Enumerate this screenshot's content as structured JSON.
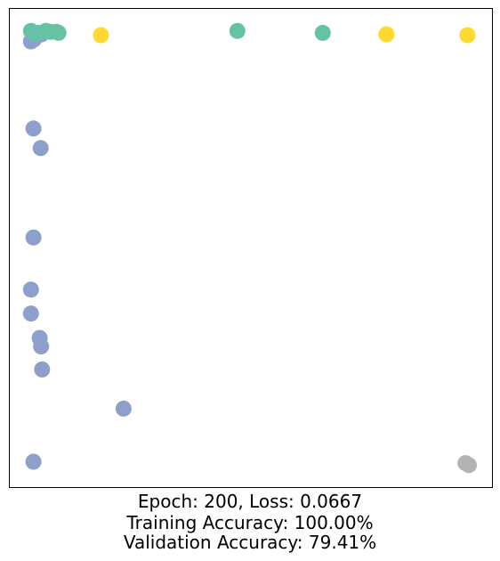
{
  "chart_data": {
    "type": "scatter",
    "title": "",
    "xlabel": "",
    "ylabel": "",
    "xlim": [
      0,
      1
    ],
    "ylim": [
      0,
      1
    ],
    "grid": false,
    "axis_ticks": false,
    "caption": [
      "Epoch: 200, Loss: 0.0667",
      "Training Accuracy: 100.00%",
      "Validation Accuracy: 79.41%"
    ],
    "series": [
      {
        "color": "#8da0cb",
        "points": [
          [
            0.044,
            0.932
          ],
          [
            0.05,
            0.936
          ],
          [
            0.066,
            0.947
          ],
          [
            0.049,
            0.75
          ],
          [
            0.064,
            0.709
          ],
          [
            0.049,
            0.522
          ],
          [
            0.044,
            0.413
          ],
          [
            0.044,
            0.363
          ],
          [
            0.062,
            0.312
          ],
          [
            0.065,
            0.294
          ],
          [
            0.067,
            0.246
          ],
          [
            0.236,
            0.164
          ],
          [
            0.049,
            0.053
          ]
        ]
      },
      {
        "color": "#66c2a5",
        "points": [
          [
            0.044,
            0.954
          ],
          [
            0.051,
            0.948
          ],
          [
            0.06,
            0.95
          ],
          [
            0.075,
            0.954
          ],
          [
            0.085,
            0.952
          ],
          [
            0.097,
            0.952
          ],
          [
            0.101,
            0.95
          ],
          [
            0.472,
            0.954
          ],
          [
            0.649,
            0.95
          ]
        ]
      },
      {
        "color": "#ffd92f",
        "points": [
          [
            0.189,
            0.945
          ],
          [
            0.781,
            0.947
          ],
          [
            0.949,
            0.945
          ]
        ]
      },
      {
        "color": "#b3b3b3",
        "points": [
          [
            0.945,
            0.05
          ],
          [
            0.952,
            0.046
          ]
        ]
      }
    ]
  }
}
